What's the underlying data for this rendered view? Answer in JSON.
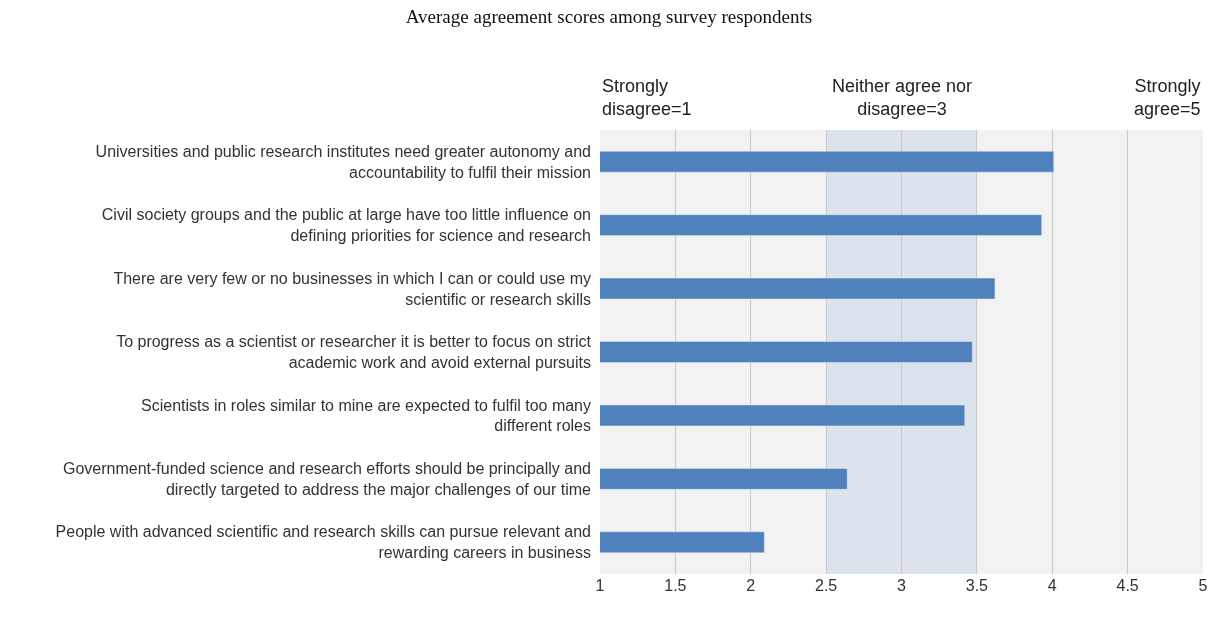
{
  "chart_data": {
    "type": "bar",
    "orientation": "horizontal",
    "title": "Average agreement scores among survey respondents",
    "categories": [
      "Universities and public research institutes need greater autonomy and accountability to fulfil their mission",
      "Civil society groups and the public at large have too little influence on defining priorities for science and research",
      "There are very few or no businesses in which I can or could use my scientific or research skills",
      "To progress as a scientist or researcher it is better to focus on strict academic work and avoid external pursuits",
      "Scientists in roles similar to mine are expected to fulfil too many different roles",
      "Government-funded science and research efforts should be principally and directly targeted to address the major challenges of our time",
      "People with advanced scientific and research skills can pursue relevant and rewarding careers in business"
    ],
    "values": [
      4.01,
      3.93,
      3.62,
      3.47,
      3.42,
      2.64,
      2.09
    ],
    "color": "#4f81bd",
    "xlim": [
      1,
      5
    ],
    "xticks": [
      1,
      1.5,
      2,
      2.5,
      3,
      3.5,
      4,
      4.5,
      5
    ],
    "grid": "x",
    "legend": false,
    "bands": [
      {
        "axis": "x",
        "from": 1,
        "to": 5,
        "label": null,
        "color": "#f2f2f2"
      },
      {
        "axis": "x",
        "from": 2.5,
        "to": 3.5,
        "label": null,
        "color": "#dce3ec"
      }
    ],
    "annotations": [
      "Strongly disagree=1",
      "Neither agree nor disagree=3",
      "Strongly agree=5"
    ]
  }
}
